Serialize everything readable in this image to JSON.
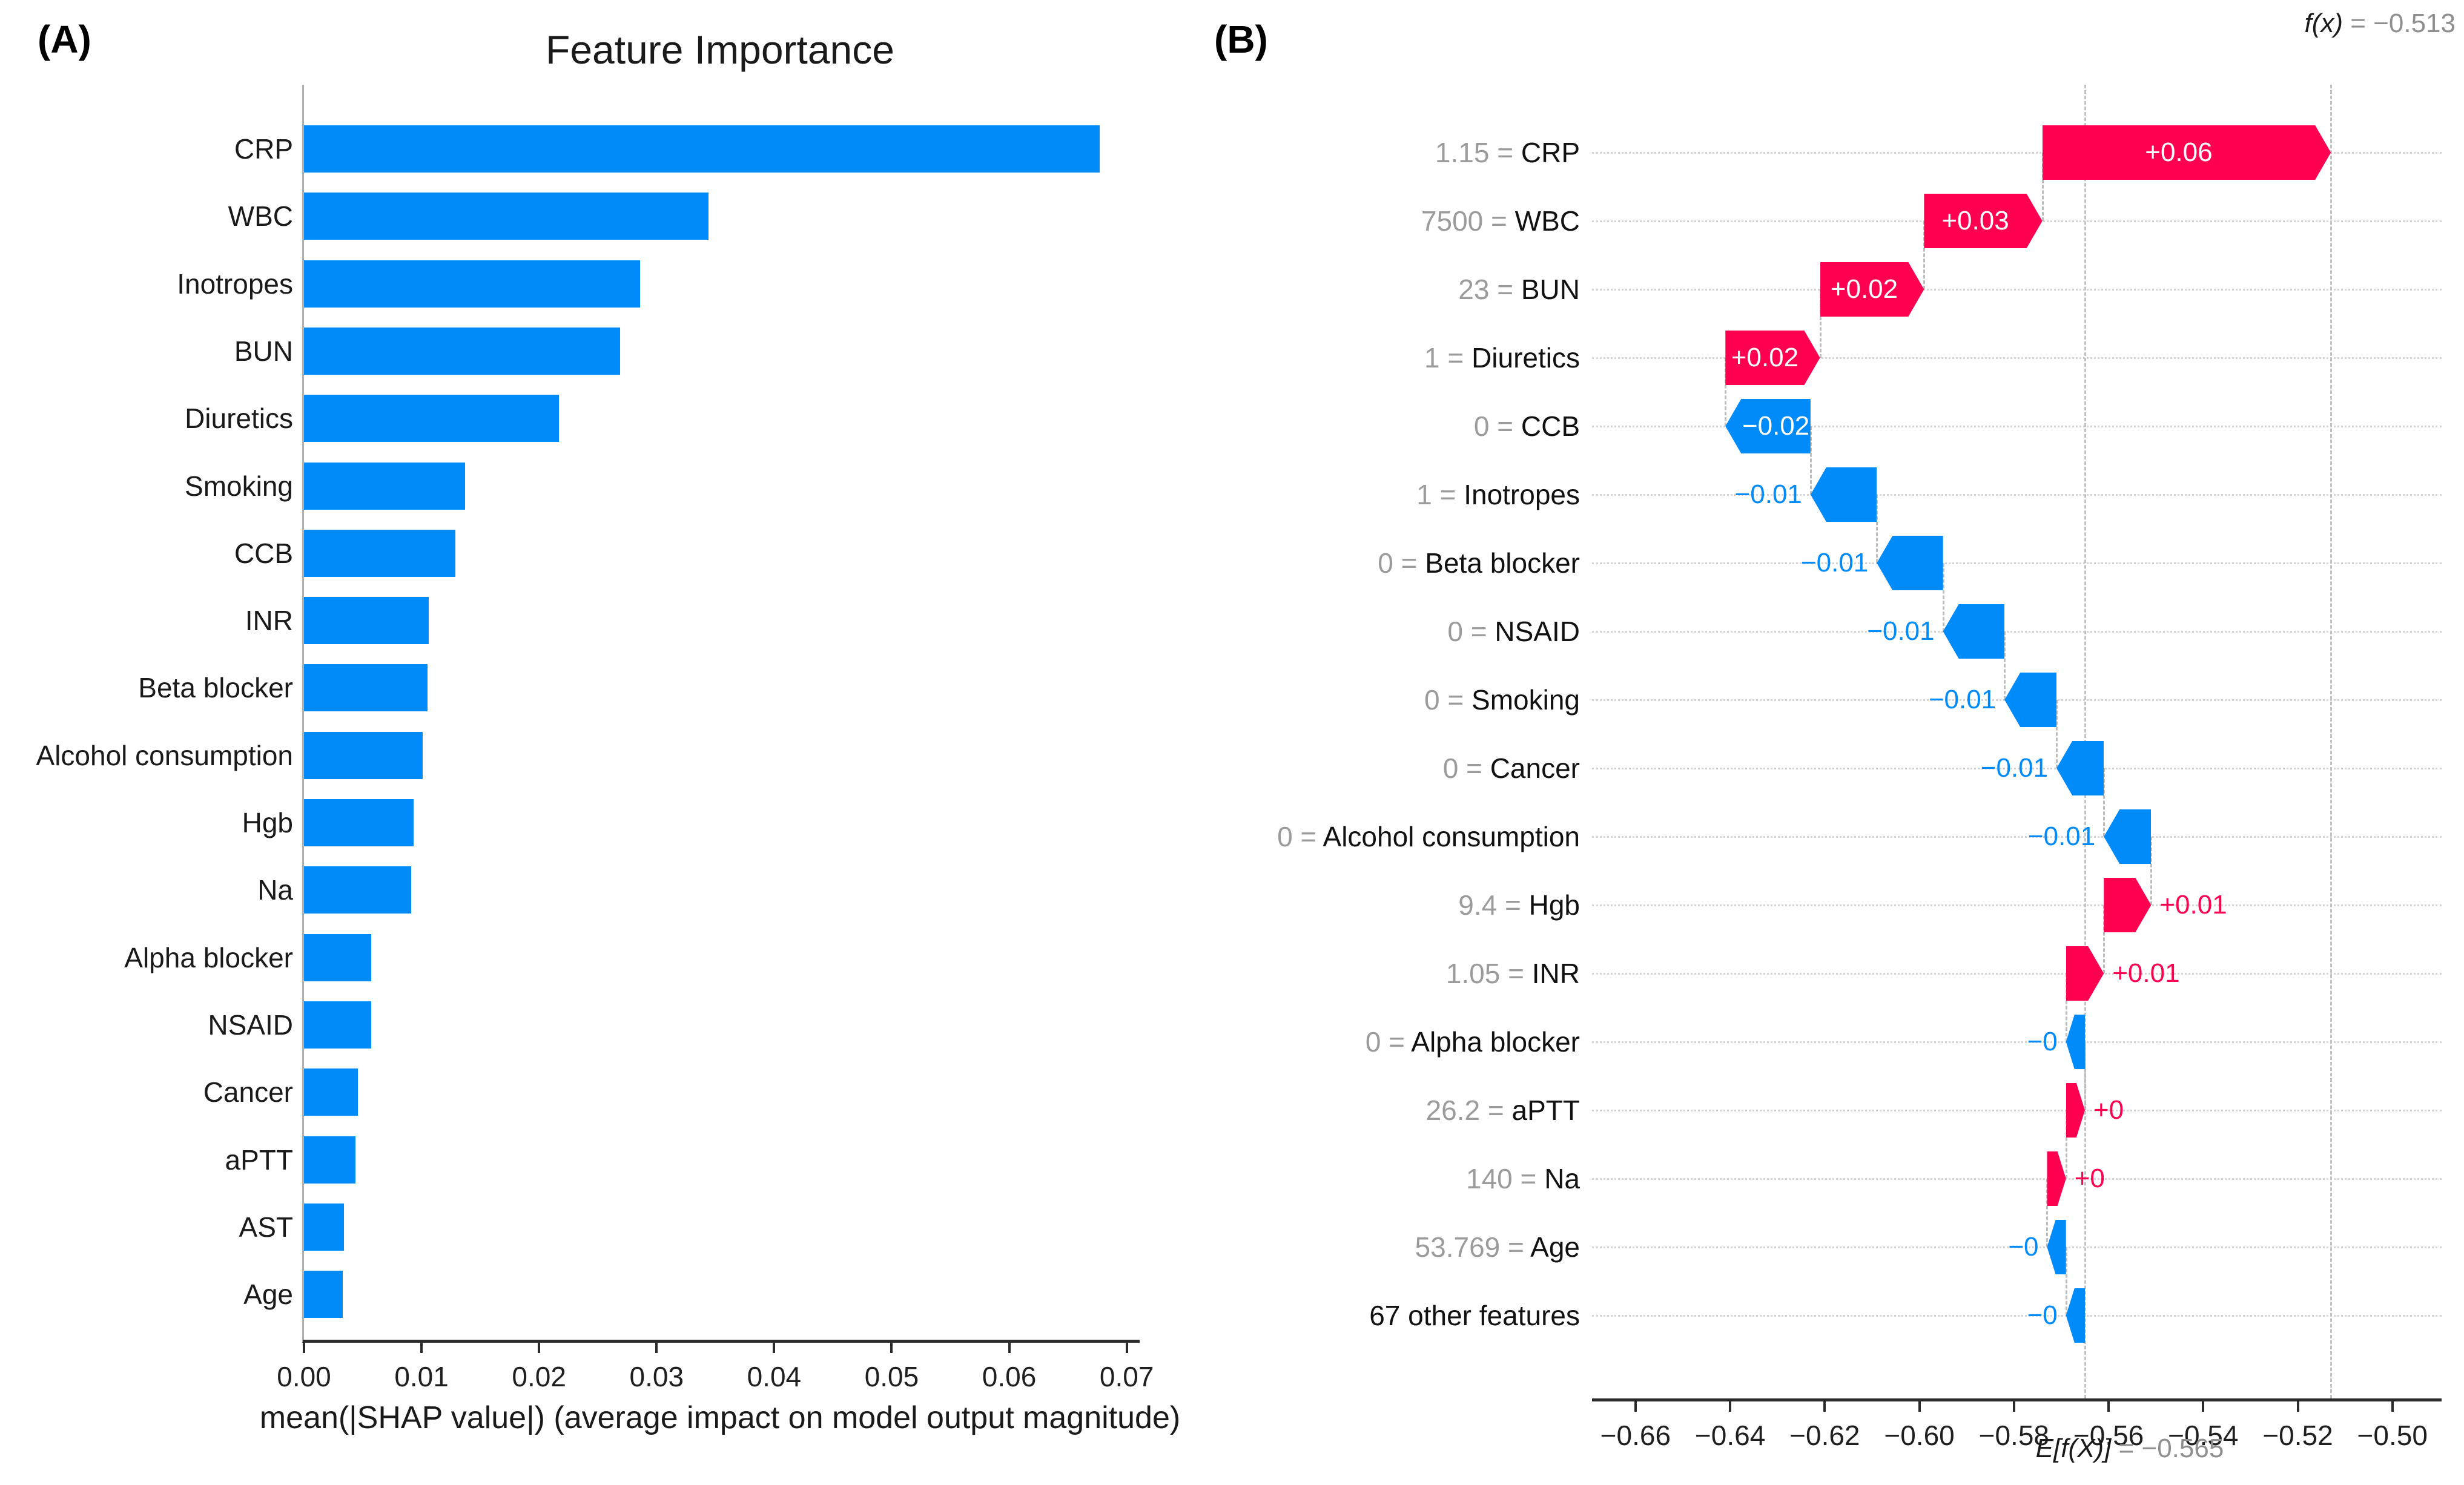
{
  "panels": {
    "a_label": "(A)",
    "b_label": "(B)"
  },
  "chart_data": [
    {
      "type": "bar",
      "title": "Feature Importance",
      "xlabel": "mean(|SHAP value|) (average impact on model output magnitude)",
      "categories": [
        "CRP",
        "WBC",
        "Inotropes",
        "BUN",
        "Diuretics",
        "Smoking",
        "CCB",
        "INR",
        "Beta blocker",
        "Alcohol consumption",
        "Hgb",
        "Na",
        "Alpha blocker",
        "NSAID",
        "Cancer",
        "aPTT",
        "AST",
        "Age"
      ],
      "values": [
        0.0677,
        0.0344,
        0.0286,
        0.0269,
        0.0217,
        0.0137,
        0.0129,
        0.0106,
        0.0105,
        0.0101,
        0.0093,
        0.0091,
        0.0057,
        0.0057,
        0.0046,
        0.0044,
        0.0034,
        0.0033
      ],
      "xlim": [
        0,
        0.0711
      ],
      "x_ticks": [
        0,
        0.01,
        0.02,
        0.03,
        0.04,
        0.05,
        0.06,
        0.07
      ],
      "x_tick_labels": [
        "0.00",
        "0.01",
        "0.02",
        "0.03",
        "0.04",
        "0.05",
        "0.06",
        "0.07"
      ],
      "grid": false,
      "legend": null,
      "bar_color": "#008bfb"
    },
    {
      "type": "waterfall",
      "fx_label": "f(x)",
      "fx_rhs": "= −0.513",
      "fx": -0.513,
      "ef_label": "E[f(X)]",
      "ef_rhs": "= −0.565",
      "base": -0.565,
      "xlim": [
        -0.6692,
        -0.4896
      ],
      "x_ticks": [
        -0.66,
        -0.64,
        -0.62,
        -0.6,
        -0.58,
        -0.56,
        -0.54,
        -0.52,
        -0.5
      ],
      "x_tick_labels": [
        "−0.66",
        "−0.64",
        "−0.62",
        "−0.60",
        "−0.58",
        "−0.56",
        "−0.54",
        "−0.52",
        "−0.50"
      ],
      "positive_color": "#ff0051",
      "negative_color": "#008bfb",
      "rows": [
        {
          "feature_value": "1.15",
          "name": "CRP",
          "start": -0.574,
          "end": -0.513,
          "label": "+0.06",
          "label_pos": "inside"
        },
        {
          "feature_value": "7500",
          "name": "WBC",
          "start": -0.599,
          "end": -0.574,
          "label": "+0.03",
          "label_pos": "inside"
        },
        {
          "feature_value": "23",
          "name": "BUN",
          "start": -0.621,
          "end": -0.599,
          "label": "+0.02",
          "label_pos": "inside"
        },
        {
          "feature_value": "1",
          "name": "Diuretics",
          "start": -0.641,
          "end": -0.621,
          "label": "+0.02",
          "label_pos": "inside"
        },
        {
          "feature_value": "0",
          "name": "CCB",
          "start": -0.623,
          "end": -0.641,
          "label": "−0.02",
          "label_pos": "inside"
        },
        {
          "feature_value": "1",
          "name": "Inotropes",
          "start": -0.609,
          "end": -0.623,
          "label": "−0.01",
          "label_pos": "left"
        },
        {
          "feature_value": "0",
          "name": "Beta blocker",
          "start": -0.595,
          "end": -0.609,
          "label": "−0.01",
          "label_pos": "left"
        },
        {
          "feature_value": "0",
          "name": "NSAID",
          "start": -0.582,
          "end": -0.595,
          "label": "−0.01",
          "label_pos": "left"
        },
        {
          "feature_value": "0",
          "name": "Smoking",
          "start": -0.571,
          "end": -0.582,
          "label": "−0.01",
          "label_pos": "left"
        },
        {
          "feature_value": "0",
          "name": "Cancer",
          "start": -0.561,
          "end": -0.571,
          "label": "−0.01",
          "label_pos": "left"
        },
        {
          "feature_value": "0",
          "name": "Alcohol consumption",
          "start": -0.551,
          "end": -0.561,
          "label": "−0.01",
          "label_pos": "left"
        },
        {
          "feature_value": "9.4",
          "name": "Hgb",
          "start": -0.561,
          "end": -0.551,
          "label": "+0.01",
          "label_pos": "right"
        },
        {
          "feature_value": "1.05",
          "name": "INR",
          "start": -0.569,
          "end": -0.561,
          "label": "+0.01",
          "label_pos": "right"
        },
        {
          "feature_value": "0",
          "name": "Alpha blocker",
          "start": -0.565,
          "end": -0.569,
          "label": "−0",
          "label_pos": "left"
        },
        {
          "feature_value": "26.2",
          "name": "aPTT",
          "start": -0.569,
          "end": -0.565,
          "label": "+0",
          "label_pos": "right"
        },
        {
          "feature_value": "140",
          "name": "Na",
          "start": -0.573,
          "end": -0.569,
          "label": "+0",
          "label_pos": "right"
        },
        {
          "feature_value": "53.769",
          "name": "Age",
          "start": -0.569,
          "end": -0.573,
          "label": "−0",
          "label_pos": "left"
        },
        {
          "feature_value": "",
          "name": "67 other features",
          "start": -0.565,
          "end": -0.569,
          "label": "−0",
          "label_pos": "left"
        }
      ]
    }
  ]
}
